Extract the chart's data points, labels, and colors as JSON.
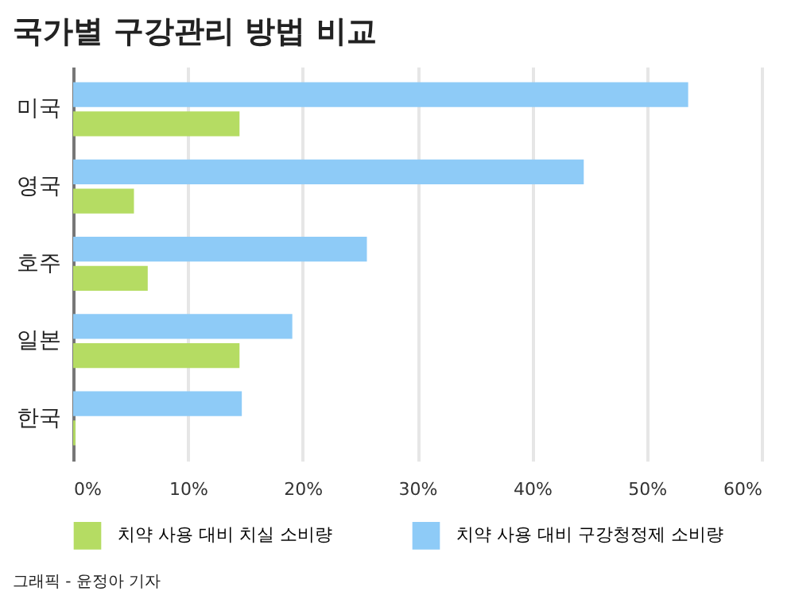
{
  "chart_data": {
    "type": "bar",
    "orientation": "horizontal",
    "title": "국가별 구강관리 방법 비교",
    "categories": [
      "미국",
      "영국",
      "호주",
      "일본",
      "한국"
    ],
    "series": [
      {
        "name": "치약 사용 대비 치실 소비량",
        "color": "#b5dc63",
        "values": [
          14.5,
          5.3,
          6.5,
          14.5,
          0.2
        ]
      },
      {
        "name": "치약 사용 대비 구강청정제 소비량",
        "color": "#8ecbf7",
        "values": [
          53.6,
          44.5,
          25.6,
          19.1,
          14.7
        ]
      }
    ],
    "xlim": [
      0,
      60
    ],
    "xticks": [
      {
        "value": 0,
        "label": "0%"
      },
      {
        "value": 10,
        "label": "10%"
      },
      {
        "value": 20,
        "label": "20%"
      },
      {
        "value": 30,
        "label": "30%"
      },
      {
        "value": 40,
        "label": "40%"
      },
      {
        "value": 50,
        "label": "50%"
      },
      {
        "value": 60,
        "label": "60%"
      }
    ],
    "grid": "x",
    "legend": "bottom",
    "annotations": [
      "그래픽 - 윤정아 기자"
    ]
  }
}
